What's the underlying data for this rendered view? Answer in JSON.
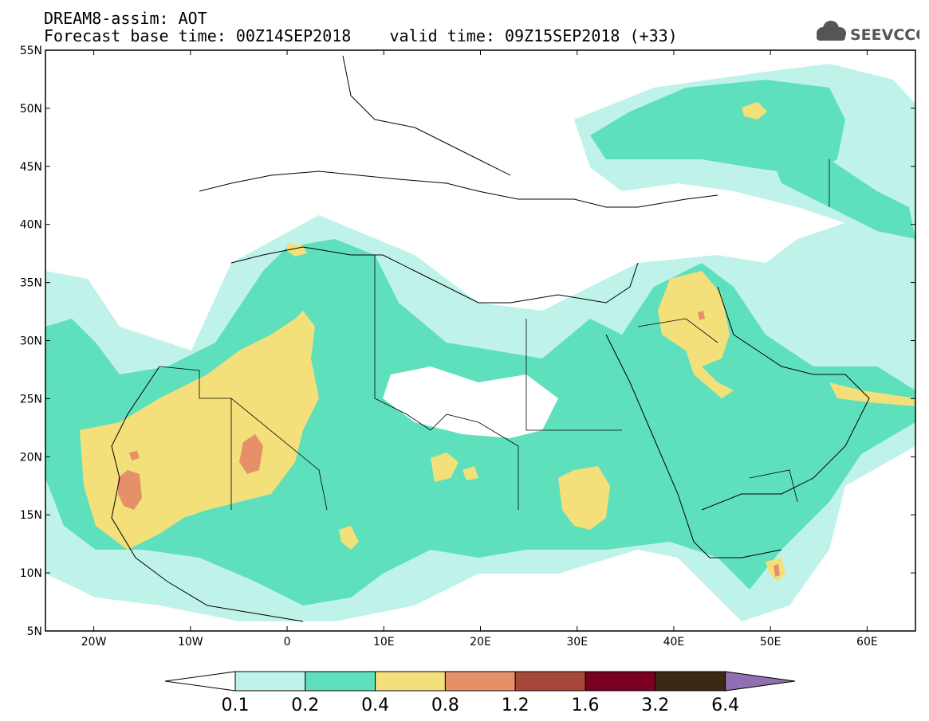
{
  "header": {
    "line1": "DREAM8-assim: AOT",
    "line2": "Forecast base time: 00Z14SEP2018    valid time: 09Z15SEP2018 (+33)"
  },
  "logo": {
    "text": "SEEVCCC",
    "icon": "cloud-icon",
    "color": "#555555"
  },
  "map": {
    "lon_range": [
      -25,
      65
    ],
    "lat_range": [
      5,
      55
    ],
    "x_ticks": [
      {
        "lon": -20,
        "label": "20W"
      },
      {
        "lon": -10,
        "label": "10W"
      },
      {
        "lon": 0,
        "label": "0"
      },
      {
        "lon": 10,
        "label": "10E"
      },
      {
        "lon": 20,
        "label": "20E"
      },
      {
        "lon": 30,
        "label": "30E"
      },
      {
        "lon": 40,
        "label": "40E"
      },
      {
        "lon": 50,
        "label": "50E"
      },
      {
        "lon": 60,
        "label": "60E"
      }
    ],
    "y_ticks": [
      {
        "lat": 55,
        "label": "55N"
      },
      {
        "lat": 50,
        "label": "50N"
      },
      {
        "lat": 45,
        "label": "45N"
      },
      {
        "lat": 40,
        "label": "40N"
      },
      {
        "lat": 35,
        "label": "35N"
      },
      {
        "lat": 30,
        "label": "30N"
      },
      {
        "lat": 25,
        "label": "25N"
      },
      {
        "lat": 20,
        "label": "20N"
      },
      {
        "lat": 15,
        "label": "15N"
      },
      {
        "lat": 10,
        "label": "10N"
      },
      {
        "lat": 5,
        "label": "5N"
      }
    ]
  },
  "colorbar": {
    "levels": [
      "0.1",
      "0.2",
      "0.4",
      "0.8",
      "1.2",
      "1.6",
      "3.2",
      "6.4"
    ],
    "colors": [
      "#ffffff",
      "#bff3ea",
      "#5fe0bc",
      "#f4e07a",
      "#e6906a",
      "#a84838",
      "#7a0020",
      "#3c2814",
      "#9070b0"
    ]
  }
}
